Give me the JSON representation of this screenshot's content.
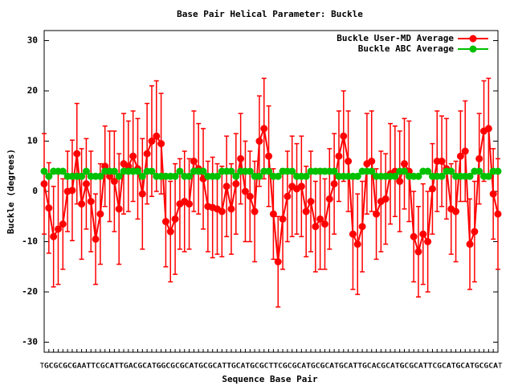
{
  "chart_data": {
    "type": "line",
    "title": "Base Pair Helical Parameter: Buckle",
    "x_label": "Sequence Base Pair",
    "y_label": "Buckle (degrees)",
    "ylim": [
      -32,
      32
    ],
    "yticks": [
      -30,
      -20,
      -10,
      0,
      10,
      20,
      30
    ],
    "legend": "top-right",
    "categories": [
      "TG",
      "GC",
      "CG",
      "GC",
      "CG",
      "GC",
      "CG",
      "CA",
      "AA",
      "AT",
      "TT",
      "TC",
      "CG",
      "GC",
      "CA",
      "AT",
      "TT",
      "TG",
      "GA",
      "AC",
      "CG",
      "GC",
      "CA",
      "AT",
      "TG",
      "GG",
      "GC",
      "CG",
      "GC",
      "CG",
      "GC",
      "CA",
      "AT",
      "TG",
      "GC",
      "CG",
      "GC",
      "CA",
      "AT",
      "TT",
      "TG",
      "GC",
      "CA",
      "AT",
      "TG",
      "GC",
      "CG",
      "GC",
      "CT",
      "TT",
      "TC",
      "CG",
      "GC",
      "CG",
      "GC",
      "CA",
      "AT",
      "TG",
      "GC",
      "CG",
      "GC",
      "CA",
      "AT",
      "TG",
      "GC",
      "CA",
      "AT",
      "TT",
      "TG",
      "GC",
      "CA",
      "AC",
      "CG",
      "GC",
      "CA",
      "AT",
      "TG",
      "GC",
      "CG",
      "GC",
      "CA",
      "AT",
      "TT",
      "TC",
      "CG",
      "GC",
      "CA",
      "AT",
      "TG",
      "GC",
      "CA",
      "AT",
      "TG",
      "GC",
      "CG",
      "GC",
      "CA",
      "AT"
    ],
    "series": [
      {
        "name": "Buckle User-MD Average",
        "color": "#ff0000",
        "values": [
          1.5,
          -3.3,
          -9,
          -7.5,
          -6.5,
          0,
          0.2,
          7.5,
          -2.5,
          1.5,
          -2,
          -9.5,
          -4.5,
          5,
          3,
          2,
          -3.5,
          5.5,
          5,
          7,
          4.5,
          -0.5,
          7.5,
          10,
          11,
          9.5,
          -6,
          -8,
          -5.5,
          -2.5,
          -2,
          -2.5,
          6,
          4.5,
          2.5,
          -3,
          -3.2,
          -3.5,
          -4,
          1,
          -3.5,
          1.5,
          6.5,
          0,
          -1,
          -4,
          10,
          12.5,
          7,
          -4.5,
          -14,
          -5.5,
          -1,
          1,
          0.5,
          1,
          -4,
          -2,
          -7,
          -5.5,
          -6.5,
          -1.5,
          1.5,
          7,
          11,
          6,
          -8.5,
          -10.5,
          -7,
          5.5,
          6,
          -4.5,
          -2,
          -1.5,
          3.5,
          4,
          2,
          5.5,
          4,
          -9,
          -12,
          -8.5,
          -10,
          0.5,
          6,
          6,
          4.5,
          -3.5,
          -4,
          7,
          8,
          -10.5,
          -8,
          6.5,
          12,
          12.5,
          -0.5,
          -4.5
        ],
        "errors": [
          10,
          9,
          10,
          11,
          9,
          8,
          10,
          10,
          11,
          9,
          10,
          9,
          10,
          8,
          9,
          10,
          11,
          10,
          9,
          9,
          10,
          11,
          10,
          11,
          11,
          10,
          9,
          10,
          11,
          9,
          10,
          9,
          10,
          9,
          10,
          9,
          10,
          9,
          9,
          10,
          9,
          10,
          9,
          10,
          9,
          10,
          9,
          10,
          10,
          9,
          9,
          10,
          9,
          10,
          9,
          10,
          9,
          10,
          9,
          10,
          9,
          10,
          10,
          9,
          9,
          10,
          11,
          10,
          9,
          10,
          10,
          9,
          10,
          9,
          10,
          9,
          10,
          9,
          10,
          9,
          9,
          10,
          10,
          9,
          10,
          9,
          10,
          9,
          10,
          9,
          10,
          9,
          10,
          9,
          10,
          10,
          9,
          11
        ]
      },
      {
        "name": "Buckle ABC Average",
        "color": "#00c000",
        "values": [
          4,
          3,
          4,
          4,
          4,
          3,
          3,
          3,
          3,
          4,
          3,
          3,
          3,
          4,
          4,
          4,
          3,
          4,
          4,
          4,
          4,
          3,
          4,
          4,
          3,
          3,
          3,
          3,
          3,
          4,
          3,
          3,
          4,
          4,
          4,
          3,
          3,
          3,
          4,
          4,
          4,
          3,
          4,
          4,
          4,
          3,
          3,
          4,
          4,
          3,
          3,
          4,
          4,
          4,
          3,
          3,
          3,
          4,
          4,
          4,
          4,
          4,
          4,
          3,
          3,
          3,
          3,
          3,
          4,
          4,
          4,
          3,
          3,
          3,
          3,
          3,
          4,
          4,
          3,
          3,
          3,
          4,
          4,
          3,
          3,
          3,
          4,
          4,
          3,
          3,
          3,
          3,
          4,
          4,
          3,
          3,
          4,
          4
        ]
      }
    ]
  }
}
